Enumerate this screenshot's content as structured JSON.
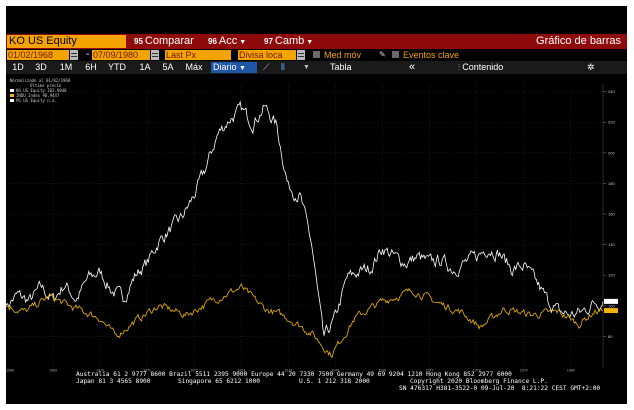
{
  "toolbar": {
    "ticker": "KO US Equity",
    "compare": {
      "tag": "95",
      "label": "Comparar"
    },
    "actions": {
      "tag": "96",
      "label": "Acc"
    },
    "change": {
      "tag": "97",
      "label": "Camb"
    },
    "chart_title": "Gráfico de barras"
  },
  "dates": {
    "start": "01/02/1968",
    "separator": "-",
    "end": "07/09/1980"
  },
  "fields": {
    "field": "Last Px",
    "currency": "Divisa loca",
    "moving_avg": "Med móv",
    "key_events": "Eventos clave"
  },
  "periods": [
    "1D",
    "3D",
    "1M",
    "6H",
    "YTD",
    "1A",
    "5A",
    "Máx"
  ],
  "frequency": "Diario",
  "view": {
    "table": "Tabla",
    "collapse": "«",
    "content": "Contenido"
  },
  "legend": {
    "header1": "Normalizado al 01/02/1968",
    "header2": "Último precio",
    "items": [
      {
        "label": "KO US Equity 102.9048",
        "color": "#ffffff"
      },
      {
        "label": "INDU Index   96.9447",
        "color": "#f0b400"
      },
      {
        "label": "PG US Equity n.a.",
        "color": "#ffffff"
      }
    ]
  },
  "footer": {
    "line1": "Australia 61 2 9777 8600 Brazil 5511 2395 9000 Europe 44 20 7330 7500 Germany 49 69 9204 1210 Hong Kong 852 2977 6000",
    "line2a": "Japan 81 3 4565 8900",
    "line2b": "Singapore 65 6212 1000",
    "line2c": "U.S. 1 212 318 2000",
    "line2d": "Copyright 2020 Bloomberg Finance L.P.",
    "line3": "SN 476317 H381-3522-0 09-Jul-20  8:21:22 CEST GMT+2:00"
  },
  "chart_data": {
    "type": "line",
    "x_range": [
      "1968-01-02",
      "1980-09-07"
    ],
    "ylim": [
      60,
      245
    ],
    "y_ticks": [
      80,
      100,
      120,
      140,
      160,
      180,
      200,
      220,
      240
    ],
    "x_ticks": [
      "1968",
      "1969",
      "1970",
      "1971",
      "1972",
      "1973",
      "1974",
      "1975",
      "1976",
      "1977",
      "1978",
      "1979",
      "1980"
    ],
    "grid": true,
    "legend_position": "top-left",
    "series": [
      {
        "name": "KO US Equity",
        "color": "#ffffff",
        "points": [
          [
            "1968-01-02",
            100
          ],
          [
            "1968-04-01",
            107
          ],
          [
            "1968-07-01",
            103
          ],
          [
            "1968-10-01",
            112
          ],
          [
            "1969-01-01",
            104
          ],
          [
            "1969-04-01",
            114
          ],
          [
            "1969-07-01",
            104
          ],
          [
            "1969-10-01",
            118
          ],
          [
            "1970-01-01",
            122
          ],
          [
            "1970-04-01",
            110
          ],
          [
            "1970-07-01",
            105
          ],
          [
            "1970-10-01",
            120
          ],
          [
            "1971-01-01",
            128
          ],
          [
            "1971-04-01",
            142
          ],
          [
            "1971-07-01",
            150
          ],
          [
            "1971-10-01",
            158
          ],
          [
            "1972-01-01",
            172
          ],
          [
            "1972-04-01",
            190
          ],
          [
            "1972-07-01",
            212
          ],
          [
            "1972-10-01",
            222
          ],
          [
            "1973-01-01",
            228
          ],
          [
            "1973-04-01",
            220
          ],
          [
            "1973-07-01",
            230
          ],
          [
            "1973-10-01",
            218
          ],
          [
            "1974-01-01",
            178
          ],
          [
            "1974-04-01",
            172
          ],
          [
            "1974-07-01",
            140
          ],
          [
            "1974-10-01",
            78
          ],
          [
            "1975-01-01",
            92
          ],
          [
            "1975-04-01",
            118
          ],
          [
            "1975-07-01",
            122
          ],
          [
            "1975-10-01",
            125
          ],
          [
            "1976-01-01",
            138
          ],
          [
            "1976-04-01",
            132
          ],
          [
            "1976-07-01",
            128
          ],
          [
            "1976-10-01",
            132
          ],
          [
            "1977-01-01",
            128
          ],
          [
            "1977-04-01",
            130
          ],
          [
            "1977-07-01",
            124
          ],
          [
            "1977-10-01",
            128
          ],
          [
            "1978-01-01",
            132
          ],
          [
            "1978-04-01",
            138
          ],
          [
            "1978-07-01",
            134
          ],
          [
            "1978-10-01",
            124
          ],
          [
            "1979-01-01",
            126
          ],
          [
            "1979-04-01",
            116
          ],
          [
            "1979-07-01",
            104
          ],
          [
            "1979-10-01",
            96
          ],
          [
            "1980-01-01",
            94
          ],
          [
            "1980-04-01",
            96
          ],
          [
            "1980-07-01",
            102
          ],
          [
            "1980-09-07",
            102.9
          ]
        ]
      },
      {
        "name": "INDU Index",
        "color": "#f0b400",
        "points": [
          [
            "1968-01-02",
            100
          ],
          [
            "1968-06-01",
            96
          ],
          [
            "1968-12-01",
            106
          ],
          [
            "1969-06-01",
            99
          ],
          [
            "1970-01-01",
            92
          ],
          [
            "1970-05-01",
            80
          ],
          [
            "1970-10-01",
            90
          ],
          [
            "1971-04-01",
            100
          ],
          [
            "1971-11-01",
            94
          ],
          [
            "1972-06-01",
            104
          ],
          [
            "1973-01-01",
            112
          ],
          [
            "1973-07-01",
            98
          ],
          [
            "1974-01-01",
            92
          ],
          [
            "1974-07-01",
            82
          ],
          [
            "1974-12-01",
            68
          ],
          [
            "1975-06-01",
            92
          ],
          [
            "1976-01-01",
            103
          ],
          [
            "1976-09-01",
            110
          ],
          [
            "1977-03-01",
            102
          ],
          [
            "1977-09-01",
            96
          ],
          [
            "1978-02-01",
            86
          ],
          [
            "1978-08-01",
            98
          ],
          [
            "1979-03-01",
            94
          ],
          [
            "1979-10-01",
            96
          ],
          [
            "1980-03-01",
            88
          ],
          [
            "1980-07-01",
            96
          ],
          [
            "1980-09-07",
            96.9
          ]
        ]
      }
    ]
  }
}
